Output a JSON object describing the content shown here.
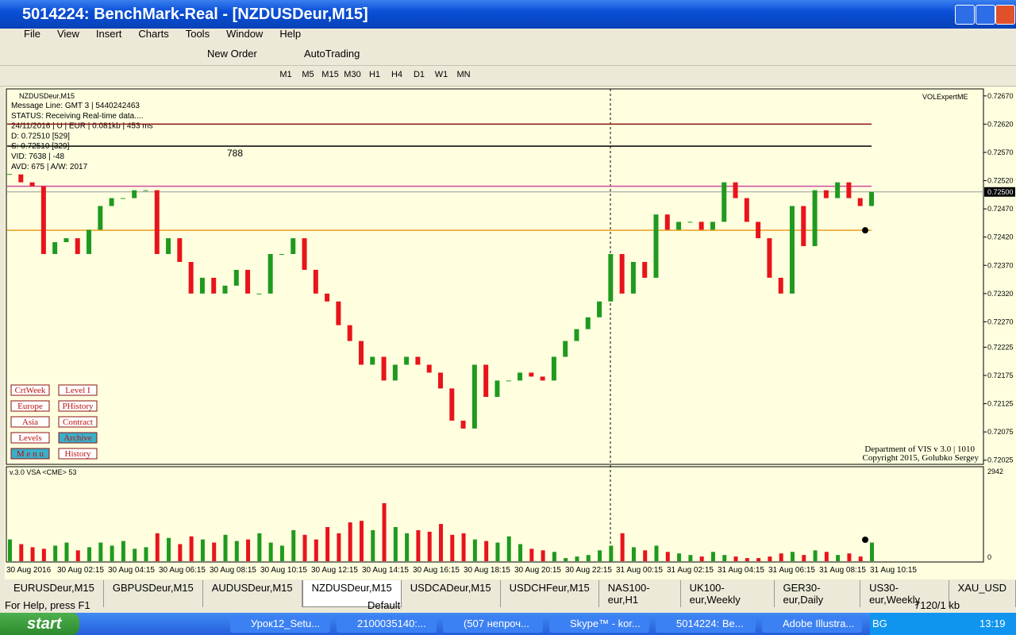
{
  "window": {
    "title": "5014224: BenchMark-Real - [NZDUSDeur,M15]"
  },
  "menu": [
    "File",
    "View",
    "Insert",
    "Charts",
    "Tools",
    "Window",
    "Help"
  ],
  "toolbar": {
    "new_order": "New Order",
    "auto_trading": "AutoTrading",
    "timeframes": [
      "M1",
      "M5",
      "M15",
      "M30",
      "H1",
      "H4",
      "D1",
      "W1",
      "MN"
    ]
  },
  "overlay": {
    "symbol": "NZDUSDeur,M15",
    "info": [
      "Message Line: GMT 3 | 5440242463",
      "STATUS:  Receiving Real-time data....",
      "24/11/2016 | U | EUR | 0.081kb | 453 ms",
      "D: 0.72510  [529]",
      "S: 0.72510  [329]",
      "VID: 7638 | -48",
      "AVD: 675 | A/W: 2017"
    ],
    "marker": "788",
    "expert": "VOLExpertME",
    "buttons": [
      [
        "CrtWeek",
        "Level I"
      ],
      [
        "Europe",
        "PHistory"
      ],
      [
        "Asia",
        "Contract"
      ],
      [
        "Levels",
        "Archive"
      ],
      [
        "M e n u",
        "History"
      ]
    ],
    "credits": [
      "Department of VIS  v 3.0 | 1010",
      "Copyright 2015, Golubko Sergey"
    ]
  },
  "chart_data": [
    {
      "type": "candlestick",
      "title": "NZDUSDeur,M15",
      "up_color": "#1f9a1f",
      "down_color": "#e8141b",
      "close": [
        0.72531,
        0.72517,
        0.7251,
        0.7239,
        0.72411,
        0.72418,
        0.7239,
        0.72433,
        0.72475,
        0.72489,
        0.72489,
        0.72503,
        0.72503,
        0.7239,
        0.72418,
        0.72376,
        0.7232,
        0.72348,
        0.7232,
        0.72334,
        0.72362,
        0.7232,
        0.7232,
        0.7239,
        0.7239,
        0.72418,
        0.72362,
        0.7232,
        0.72306,
        0.72264,
        0.72236,
        0.72194,
        0.72208,
        0.72166,
        0.72194,
        0.72208,
        0.72194,
        0.7218,
        0.72152,
        0.72095,
        0.72081,
        0.72194,
        0.72137,
        0.72166,
        0.72166,
        0.7218,
        0.72173,
        0.72166,
        0.72208,
        0.72236,
        0.72257,
        0.72278,
        0.72306,
        0.7239,
        0.7232,
        0.72376,
        0.72348,
        0.7246,
        0.72433,
        0.72447,
        0.72447,
        0.72433,
        0.72447,
        0.72517,
        0.72489,
        0.72447,
        0.72418,
        0.72348,
        0.7232,
        0.72475,
        0.72404,
        0.72503,
        0.72489,
        0.72517,
        0.72489,
        0.72475,
        0.725
      ],
      "ylim": [
        0.72019,
        0.72681
      ],
      "yticks": [
        {
          "value": 0.7267,
          "label": "0.72670"
        },
        {
          "value": 0.7262,
          "label": "0.72620"
        },
        {
          "value": 0.7257,
          "label": "0.72570"
        },
        {
          "value": 0.7252,
          "label": "0.72520"
        },
        {
          "value": 0.7247,
          "label": "0.72470"
        },
        {
          "value": 0.7242,
          "label": "0.72420"
        },
        {
          "value": 0.7237,
          "label": "0.72370"
        },
        {
          "value": 0.7232,
          "label": "0.72320"
        },
        {
          "value": 0.7227,
          "label": "0.72270"
        },
        {
          "value": 0.72225,
          "label": "0.72225"
        },
        {
          "value": 0.72175,
          "label": "0.72175"
        },
        {
          "value": 0.72125,
          "label": "0.72125"
        },
        {
          "value": 0.72075,
          "label": "0.72075"
        },
        {
          "value": 0.72025,
          "label": "0.72025"
        }
      ],
      "current_price": {
        "value": 0.725,
        "label": "0.72500"
      },
      "levels": [
        {
          "value": 0.7262,
          "color": "#8b1010"
        },
        {
          "value": 0.72581,
          "color": "#000000"
        },
        {
          "value": 0.7251,
          "color": "#d04aa0"
        },
        {
          "value": 0.72432,
          "color": "#e8a020"
        }
      ],
      "x_labels": [
        "30 Aug 2016",
        "30 Aug 02:15",
        "30 Aug 04:15",
        "30 Aug 06:15",
        "30 Aug 08:15",
        "30 Aug 10:15",
        "30 Aug 12:15",
        "30 Aug 14:15",
        "30 Aug 16:15",
        "30 Aug 18:15",
        "30 Aug 20:15",
        "30 Aug 22:15",
        "31 Aug 00:15",
        "31 Aug 02:15",
        "31 Aug 04:15",
        "31 Aug 06:15",
        "31 Aug 08:15",
        "31 Aug 10:15"
      ]
    },
    {
      "type": "bar",
      "title": "v.3.0 VSA <CME> 53",
      "values": [
        700,
        550,
        450,
        400,
        500,
        600,
        350,
        450,
        600,
        500,
        650,
        400,
        450,
        900,
        750,
        550,
        800,
        700,
        600,
        850,
        650,
        700,
        900,
        600,
        500,
        1000,
        850,
        700,
        1100,
        900,
        1250,
        1300,
        1000,
        1870,
        1100,
        900,
        1000,
        950,
        1200,
        850,
        900,
        700,
        650,
        600,
        800,
        550,
        400,
        350,
        300,
        100,
        150,
        200,
        350,
        500,
        900,
        450,
        350,
        500,
        300,
        250,
        200,
        150,
        300,
        200,
        150,
        100,
        100,
        150,
        250,
        300,
        200,
        350,
        300,
        200,
        250,
        150,
        600
      ],
      "ylim": [
        0,
        2942
      ],
      "yticks": [
        0,
        2942
      ]
    }
  ],
  "tabs": [
    "EURUSDeur,M15",
    "GBPUSDeur,M15",
    "AUDUSDeur,M15",
    "NZDUSDeur,M15",
    "USDCADeur,M15",
    "USDCHFeur,M15",
    "NAS100-eur,H1",
    "UK100-eur,Weekly",
    "GER30-eur,Daily",
    "US30-eur,Weekly",
    "XAU_USD"
  ],
  "status": {
    "help": "For Help, press F1",
    "profile": "Default",
    "traffic": "7120/1 kb"
  },
  "taskbar": {
    "start": "start",
    "items": [
      "Урок12_Setu...",
      "2100035140:...",
      "(507 непроч...",
      "Skype™ - kor...",
      "5014224: Be...",
      "Adobe Illustra..."
    ],
    "lang": "BG",
    "clock": "13:19"
  }
}
